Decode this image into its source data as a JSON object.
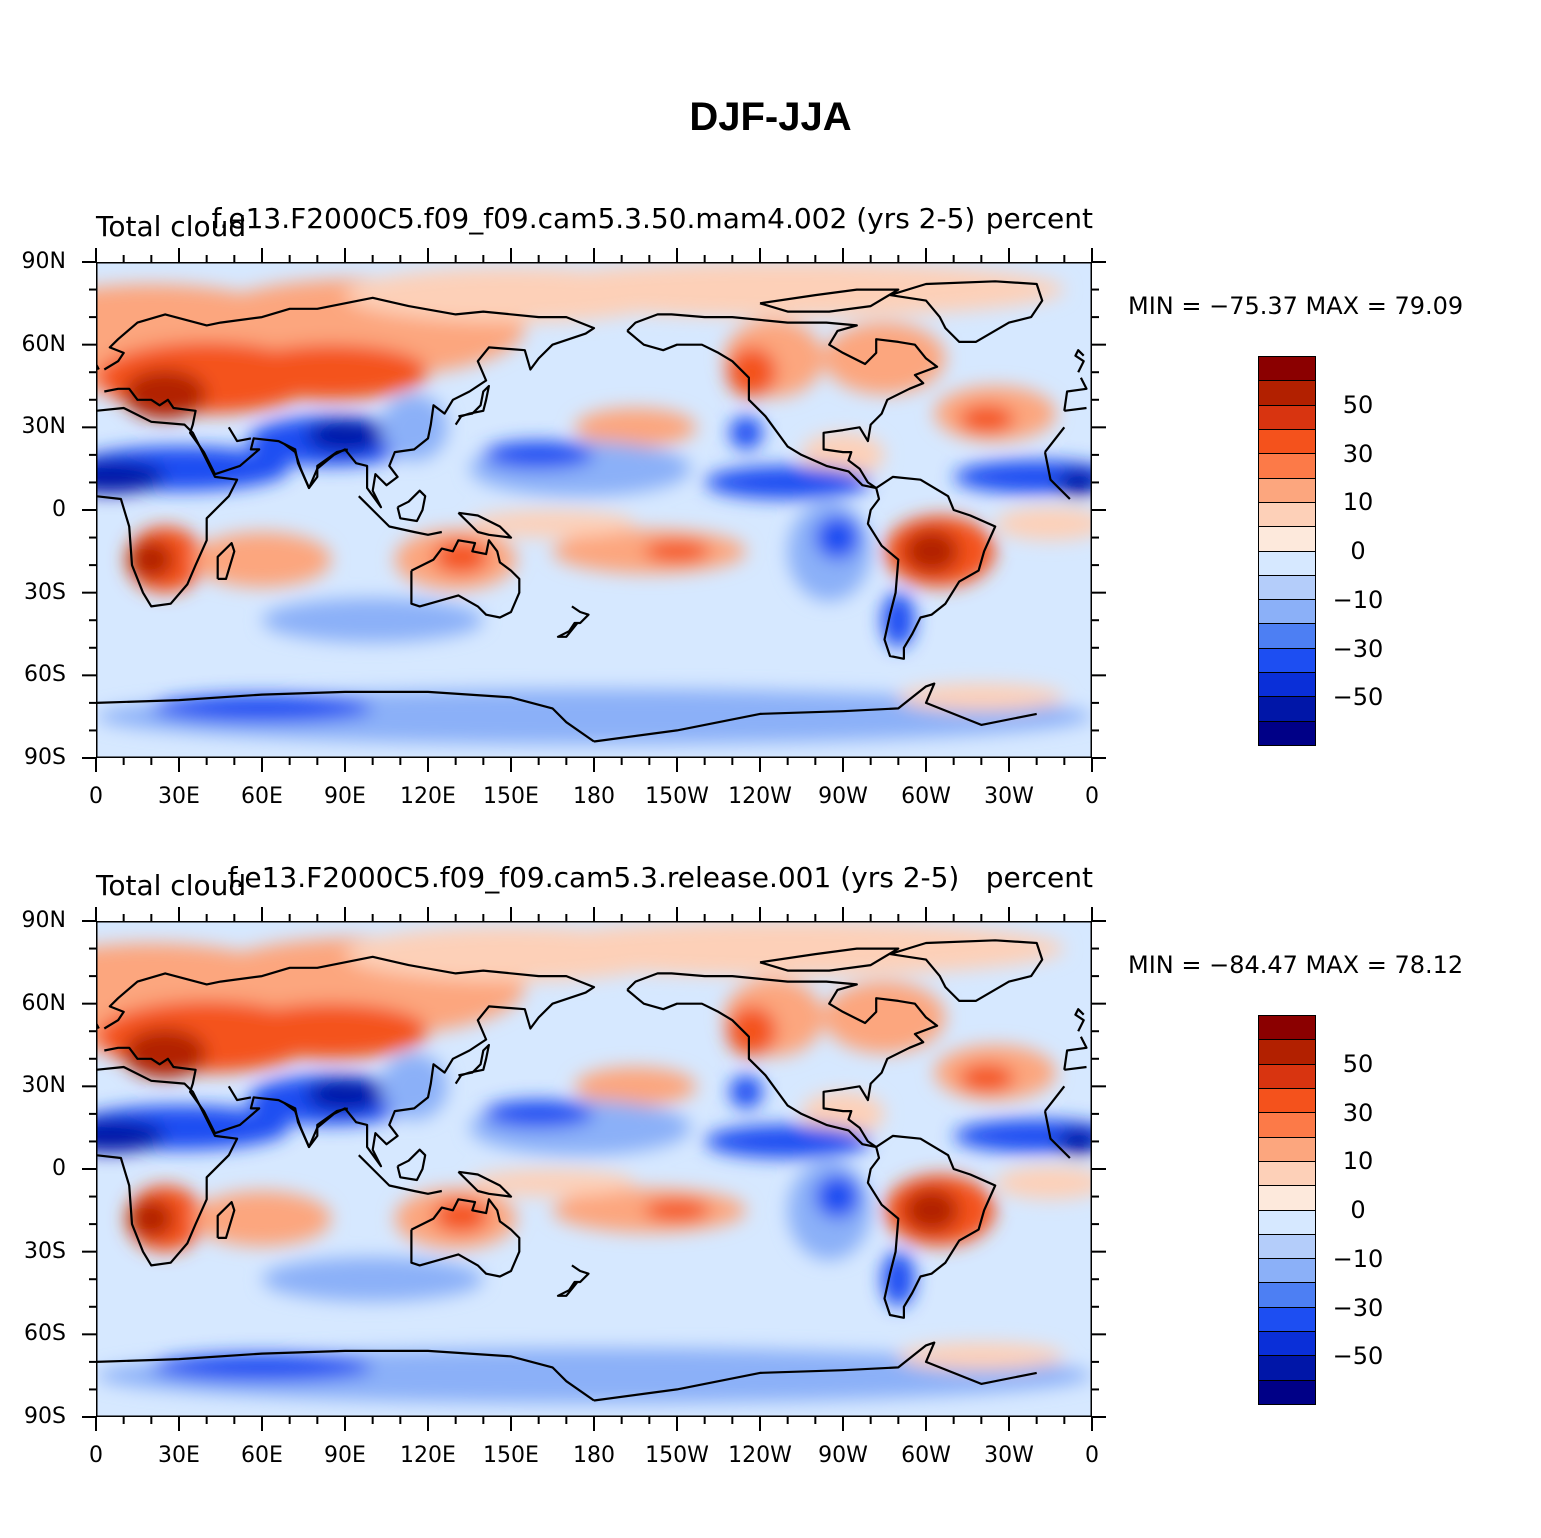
{
  "title": "DJF-JJA",
  "panels": [
    {
      "left_label": "Total cloud",
      "center_label": "f.e13.F2000C5.f09_f09.cam5.3.50.mam4.002 (yrs 2-5)",
      "right_label": "percent",
      "min_max": "MIN = −75.37 MAX =  79.09"
    },
    {
      "left_label": "Total cloud",
      "center_label": "f.e13.F2000C5.f09_f09.cam5.3.release.001 (yrs 2-5)",
      "right_label": "percent",
      "min_max": "MIN = −84.47 MAX =  78.12"
    }
  ],
  "axes": {
    "lat_labels": [
      "90N",
      "60N",
      "30N",
      "0",
      "30S",
      "60S",
      "90S"
    ],
    "lon_labels": [
      "0",
      "30E",
      "60E",
      "90E",
      "120E",
      "150E",
      "180",
      "150W",
      "120W",
      "90W",
      "60W",
      "30W",
      "0"
    ]
  },
  "colorbar": {
    "labels": [
      "50",
      "30",
      "10",
      "0",
      "−10",
      "−30",
      "−50"
    ],
    "colors": [
      "#8b0000",
      "#b22000",
      "#d83410",
      "#f4521c",
      "#fc7a48",
      "#fca67e",
      "#fdd0b8",
      "#fde9dc",
      "#d6e8ff",
      "#b4cdfa",
      "#8bb0f8",
      "#4d7ff3",
      "#1d4ef2",
      "#0a2fd8",
      "#0016a8",
      "#000087"
    ]
  },
  "map_colors": {
    "ocean_neg_light": "#d6e8ff",
    "neg_mid": "#8bb0f8",
    "neg_strong": "#1d4ef2",
    "neg_deep": "#0016a8",
    "pos_light": "#fdd0b8",
    "pos_mid": "#fca67e",
    "pos_strong": "#f4521c",
    "pos_deep": "#b22000",
    "coast": "#000000"
  }
}
